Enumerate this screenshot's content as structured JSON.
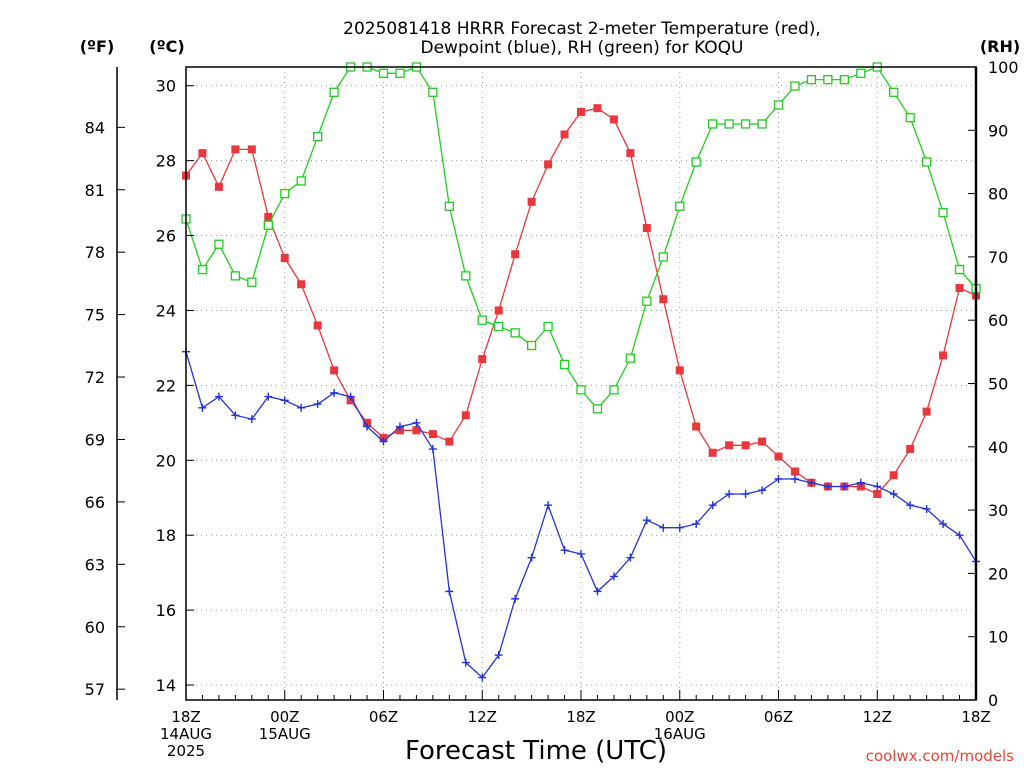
{
  "chart_data": {
    "type": "line",
    "title": "2025081418 HRRR Forecast 2-meter Temperature (red),",
    "subtitle": "Dewpoint (blue), RH (green) for KOQU",
    "xlabel": "Forecast Time (UTC)",
    "unit_f": "(ºF)",
    "unit_c": "(ºC)",
    "unit_rh": "(RH)",
    "credit": "coolwx.com/models",
    "x": [
      0,
      1,
      2,
      3,
      4,
      5,
      6,
      7,
      8,
      9,
      10,
      11,
      12,
      13,
      14,
      15,
      16,
      17,
      18,
      19,
      20,
      21,
      22,
      23,
      24,
      25,
      26,
      27,
      28,
      29,
      30,
      31,
      32,
      33,
      34,
      35,
      36,
      37,
      38,
      39,
      40,
      41,
      42,
      43,
      44,
      45,
      46,
      47,
      48
    ],
    "xlim": [
      0,
      48
    ],
    "x_ticks": [
      {
        "x": 0,
        "lines": [
          "18Z",
          "14AUG",
          "2025"
        ]
      },
      {
        "x": 6,
        "lines": [
          "00Z",
          "15AUG"
        ]
      },
      {
        "x": 12,
        "lines": [
          "06Z"
        ]
      },
      {
        "x": 18,
        "lines": [
          "12Z"
        ]
      },
      {
        "x": 24,
        "lines": [
          "18Z"
        ]
      },
      {
        "x": 30,
        "lines": [
          "00Z",
          "16AUG"
        ]
      },
      {
        "x": 36,
        "lines": [
          "06Z"
        ]
      },
      {
        "x": 42,
        "lines": [
          "12Z"
        ]
      },
      {
        "x": 48,
        "lines": [
          "18Z"
        ]
      }
    ],
    "ylim_c": [
      13.6,
      30.5
    ],
    "yticks_c": [
      "14",
      "16",
      "18",
      "20",
      "22",
      "24",
      "26",
      "28",
      "30"
    ],
    "yticks_f": [
      "57",
      "60",
      "63",
      "66",
      "69",
      "72",
      "75",
      "78",
      "81",
      "84"
    ],
    "ylim_rh": [
      0,
      100
    ],
    "yticks_rh": [
      "0",
      "10",
      "20",
      "30",
      "40",
      "50",
      "60",
      "70",
      "80",
      "90",
      "100"
    ],
    "grid": true,
    "series": [
      {
        "name": "Temperature",
        "axis": "c",
        "color": "#e8383d",
        "marker": "filled-square",
        "values": [
          27.6,
          28.2,
          27.3,
          28.3,
          28.3,
          26.5,
          25.4,
          24.7,
          23.6,
          22.4,
          21.6,
          21.0,
          20.6,
          20.8,
          20.8,
          20.7,
          20.5,
          21.2,
          22.7,
          24.0,
          25.5,
          26.9,
          27.9,
          28.7,
          29.3,
          29.4,
          29.1,
          28.2,
          26.2,
          24.3,
          22.4,
          20.9,
          20.2,
          20.4,
          20.4,
          20.5,
          20.1,
          19.7,
          19.4,
          19.3,
          19.3,
          19.3,
          19.1,
          19.6,
          20.3,
          21.3,
          22.8,
          24.6,
          24.4
        ]
      },
      {
        "name": "Dewpoint",
        "axis": "c",
        "color": "#2233dd",
        "marker": "plus",
        "values": [
          22.9,
          21.4,
          21.7,
          21.2,
          21.1,
          21.7,
          21.6,
          21.4,
          21.5,
          21.8,
          21.7,
          20.9,
          20.5,
          20.9,
          21.0,
          20.3,
          16.5,
          14.6,
          14.2,
          14.8,
          16.3,
          17.4,
          18.8,
          17.6,
          17.5,
          16.5,
          16.9,
          17.4,
          18.4,
          18.2,
          18.2,
          18.3,
          18.8,
          19.1,
          19.1,
          19.2,
          19.5,
          19.5,
          19.4,
          19.3,
          19.3,
          19.4,
          19.3,
          19.1,
          18.8,
          18.7,
          18.3,
          18.0,
          17.3
        ]
      },
      {
        "name": "RH",
        "axis": "rh",
        "color": "#22cc22",
        "marker": "open-square",
        "values": [
          76,
          68,
          72,
          67,
          66,
          75,
          80,
          82,
          89,
          96,
          100,
          100,
          99,
          99,
          100,
          96,
          78,
          67,
          60,
          59,
          58,
          56,
          59,
          53,
          49,
          46,
          49,
          54,
          63,
          70,
          78,
          85,
          91,
          91,
          91,
          91,
          94,
          97,
          98,
          98,
          98,
          99,
          100,
          96,
          92,
          85,
          77,
          68,
          65
        ]
      }
    ]
  }
}
